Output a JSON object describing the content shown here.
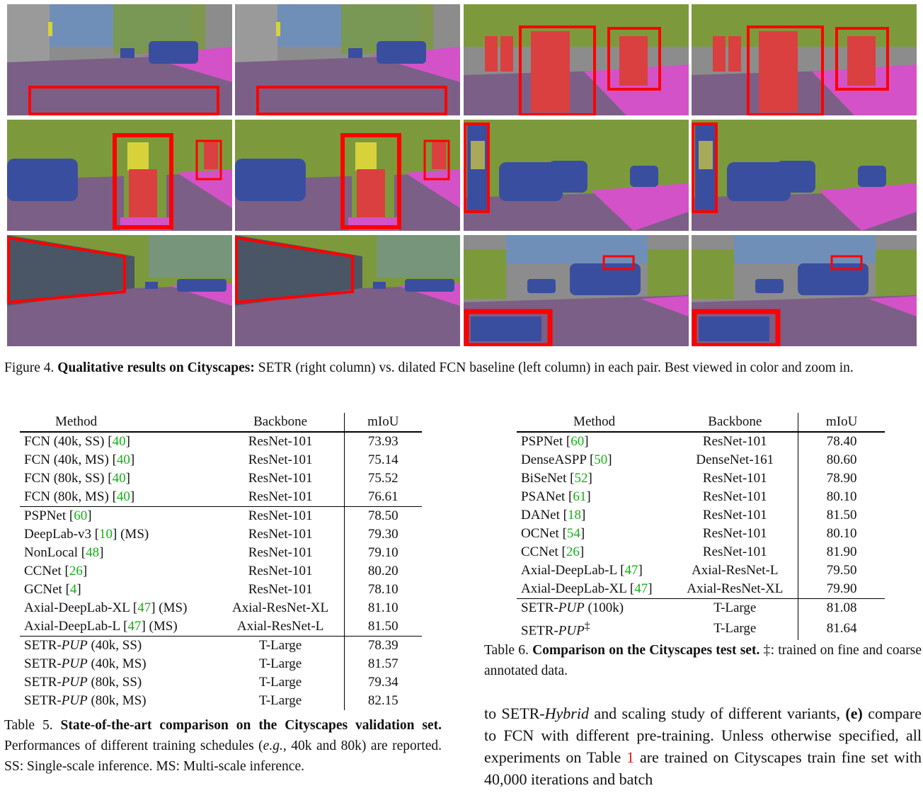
{
  "figure": {
    "label": "Figure 4.",
    "title": "Qualitative results on Cityscapes:",
    "text": " SETR (right column) vs. dilated FCN baseline (left column) in each pair. Best viewed in color and zoom in.",
    "tiles": [
      {
        "scene": "street-ada"
      },
      {
        "scene": "street-ada"
      },
      {
        "scene": "pedestrians"
      },
      {
        "scene": "pedestrians"
      },
      {
        "scene": "cars-sign"
      },
      {
        "scene": "cars-sign"
      },
      {
        "scene": "cars-pole"
      },
      {
        "scene": "cars-pole"
      },
      {
        "scene": "wall-trees"
      },
      {
        "scene": "wall-trees"
      },
      {
        "scene": "van-street"
      },
      {
        "scene": "van-street"
      }
    ],
    "colors": {
      "road": "#7b5f86",
      "sidewalk": "#d452c8",
      "vegetation": "#7c9a3c",
      "building": "#8c8c8c",
      "car": "#3a4ea0",
      "person": "#d9403f",
      "sky": "#6f8fb8",
      "highlight": "#ff0000"
    }
  },
  "table5": {
    "headers": [
      "Method",
      "Backbone",
      "mIoU"
    ],
    "rows": [
      {
        "method": "FCN (40k, SS) [",
        "cite": "40",
        "suffix": "]",
        "backbone": "ResNet-101",
        "miou": "73.93"
      },
      {
        "method": "FCN (40k, MS) [",
        "cite": "40",
        "suffix": "]",
        "backbone": "ResNet-101",
        "miou": "75.14"
      },
      {
        "method": "FCN (80k, SS) [",
        "cite": "40",
        "suffix": "]",
        "backbone": "ResNet-101",
        "miou": "75.52"
      },
      {
        "method": "FCN (80k, MS) [",
        "cite": "40",
        "suffix": "]",
        "backbone": "ResNet-101",
        "miou": "76.61"
      },
      {
        "method": "PSPNet [",
        "cite": "60",
        "suffix": "]",
        "backbone": "ResNet-101",
        "miou": "78.50"
      },
      {
        "method": "DeepLab-v3 [",
        "cite": "10",
        "suffix": "] (MS)",
        "backbone": "ResNet-101",
        "miou": "79.30"
      },
      {
        "method": "NonLocal [",
        "cite": "48",
        "suffix": "]",
        "backbone": "ResNet-101",
        "miou": "79.10"
      },
      {
        "method": "CCNet [",
        "cite": "26",
        "suffix": "]",
        "backbone": "ResNet-101",
        "miou": "80.20"
      },
      {
        "method": "GCNet [",
        "cite": "4",
        "suffix": "]",
        "backbone": "ResNet-101",
        "miou": "78.10"
      },
      {
        "method": "Axial-DeepLab-XL [",
        "cite": "47",
        "suffix": "] (MS)",
        "backbone": "Axial-ResNet-XL",
        "miou": "81.10"
      },
      {
        "method": "Axial-DeepLab-L [",
        "cite": "47",
        "suffix": "] (MS)",
        "backbone": "Axial-ResNet-L",
        "miou": "81.50"
      },
      {
        "method": "SETR-",
        "ital": "PUP",
        "suffix": " (40k, SS)",
        "backbone": "T-Large",
        "miou": "78.39"
      },
      {
        "method": "SETR-",
        "ital": "PUP",
        "suffix": " (40k, MS)",
        "backbone": "T-Large",
        "miou": "81.57"
      },
      {
        "method": "SETR-",
        "ital": "PUP",
        "suffix": " (80k, SS)",
        "backbone": "T-Large",
        "miou": "79.34"
      },
      {
        "method": "SETR-",
        "ital": "PUP",
        "suffix": " (80k, MS)",
        "backbone": "T-Large",
        "miou": "82.15"
      }
    ],
    "caption_label": "Table 5.",
    "caption_title": "State-of-the-art comparison on the Cityscapes validation set.",
    "caption_text": " Performances of different training schedules (",
    "caption_eg": "e.g.",
    "caption_text2": ", 40k and 80k) are reported.  SS: Single-scale inference.  MS: Multi-scale inference."
  },
  "table6": {
    "headers": [
      "Method",
      "Backbone",
      "mIoU"
    ],
    "rows": [
      {
        "method": "PSPNet [",
        "cite": "60",
        "suffix": "]",
        "backbone": "ResNet-101",
        "miou": "78.40"
      },
      {
        "method": "DenseASPP [",
        "cite": "50",
        "suffix": "]",
        "backbone": "DenseNet-161",
        "miou": "80.60"
      },
      {
        "method": "BiSeNet [",
        "cite": "52",
        "suffix": "]",
        "backbone": "ResNet-101",
        "miou": "78.90"
      },
      {
        "method": "PSANet [",
        "cite": "61",
        "suffix": "]",
        "backbone": "ResNet-101",
        "miou": "80.10"
      },
      {
        "method": "DANet [",
        "cite": "18",
        "suffix": "]",
        "backbone": "ResNet-101",
        "miou": "81.50"
      },
      {
        "method": "OCNet [",
        "cite": "54",
        "suffix": "]",
        "backbone": "ResNet-101",
        "miou": "80.10"
      },
      {
        "method": "CCNet [",
        "cite": "26",
        "suffix": "]",
        "backbone": "ResNet-101",
        "miou": "81.90"
      },
      {
        "method": "Axial-DeepLab-L [",
        "cite": "47",
        "suffix": "]",
        "backbone": "Axial-ResNet-L",
        "miou": "79.50"
      },
      {
        "method": "Axial-DeepLab-XL [",
        "cite": "47",
        "suffix": "]",
        "backbone": "Axial-ResNet-XL",
        "miou": "79.90"
      },
      {
        "method": "SETR-",
        "ital": "PUP",
        "suffix": " (100k)",
        "backbone": "T-Large",
        "miou": "81.08"
      },
      {
        "method": "SETR-",
        "ital": "PUP",
        "sup": "‡",
        "suffix": "",
        "backbone": "T-Large",
        "miou": "81.64"
      }
    ],
    "caption_label": "Table 6.",
    "caption_title": "Comparison on the Cityscapes test set.",
    "caption_text": " ‡: trained on fine and coarse annotated data."
  },
  "body": {
    "p1": "to SETR-",
    "p1_ital": "Hybrid",
    "p2": " and scaling study of different variants, ",
    "p2_bold": "(e)",
    "p3": " compare to FCN with different pre-training. Unless otherwise specified, all experiments on Table ",
    "p3_cite": "1",
    "p4": " are trained on Cityscapes train fine set with 40,000 iterations and batch"
  }
}
